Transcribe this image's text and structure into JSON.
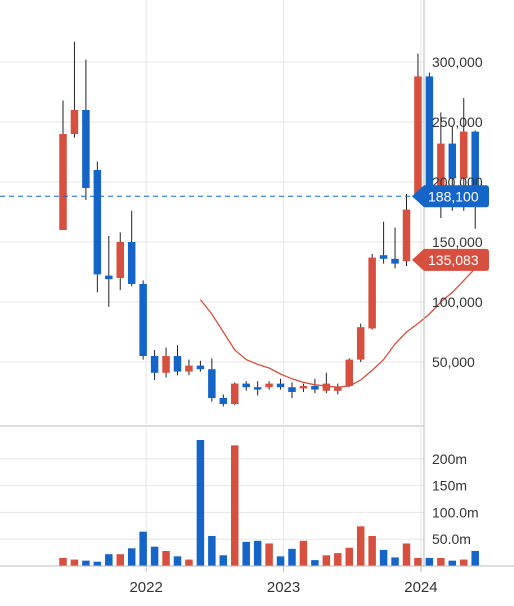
{
  "colors": {
    "up": "#d64f3f",
    "down": "#1565c8",
    "ma": "#d64f3f",
    "grid": "#e6e6e6",
    "axis": "#bbbbbb",
    "price_line": "#1565c8"
  },
  "chart_data": {
    "type": "candlestick",
    "price_axis": {
      "ylim": [
        10000,
        315000
      ],
      "ticks": [
        300000,
        250000,
        200000,
        150000,
        100000,
        50000
      ],
      "tick_labels": [
        "300,000",
        "250,000",
        "200,000",
        "150,000",
        "100,000",
        "50,000"
      ]
    },
    "volume_axis": {
      "ylim": [
        0,
        235
      ],
      "ticks": [
        200,
        150,
        100,
        50
      ],
      "tick_labels": [
        "200m",
        "150m",
        "100.0m",
        "50.0m"
      ]
    },
    "x_ticks": [
      {
        "month": 7,
        "label": "2022"
      },
      {
        "month": 19,
        "label": "2023"
      },
      {
        "month": 31,
        "label": "2024"
      }
    ],
    "month_range": [
      0,
      37
    ],
    "last_price": {
      "value": 188100,
      "label": "188,100"
    },
    "ma_last": {
      "value": 135083,
      "label": "135,083"
    },
    "candles": [
      {
        "m": 0,
        "o": 160000,
        "h": 268000,
        "l": 160000,
        "c": 240000,
        "v": 15
      },
      {
        "m": 1,
        "o": 240000,
        "h": 317000,
        "l": 237000,
        "c": 260000,
        "v": 12
      },
      {
        "m": 2,
        "o": 260000,
        "h": 302000,
        "l": 185000,
        "c": 195000,
        "v": 10
      },
      {
        "m": 3,
        "o": 210000,
        "h": 217000,
        "l": 108000,
        "c": 123000,
        "v": 8
      },
      {
        "m": 4,
        "o": 122000,
        "h": 155000,
        "l": 96000,
        "c": 119000,
        "v": 22
      },
      {
        "m": 5,
        "o": 120000,
        "h": 158000,
        "l": 110000,
        "c": 150000,
        "v": 22
      },
      {
        "m": 6,
        "o": 150000,
        "h": 176000,
        "l": 113000,
        "c": 115000,
        "v": 33
      },
      {
        "m": 7,
        "o": 115000,
        "h": 118000,
        "l": 52000,
        "c": 55000,
        "v": 64
      },
      {
        "m": 8,
        "o": 55000,
        "h": 60000,
        "l": 35000,
        "c": 41000,
        "v": 36
      },
      {
        "m": 9,
        "o": 41000,
        "h": 62000,
        "l": 37000,
        "c": 55000,
        "v": 28
      },
      {
        "m": 10,
        "o": 55000,
        "h": 64000,
        "l": 39000,
        "c": 42000,
        "v": 18
      },
      {
        "m": 11,
        "o": 42000,
        "h": 52000,
        "l": 39000,
        "c": 47000,
        "v": 12
      },
      {
        "m": 12,
        "o": 47000,
        "h": 51000,
        "l": 42000,
        "c": 44000,
        "v": 235
      },
      {
        "m": 13,
        "o": 44000,
        "h": 53000,
        "l": 17000,
        "c": 20000,
        "v": 56
      },
      {
        "m": 14,
        "o": 20000,
        "h": 23000,
        "l": 13000,
        "c": 15000,
        "v": 20
      },
      {
        "m": 15,
        "o": 15000,
        "h": 33000,
        "l": 14000,
        "c": 32000,
        "v": 225
      },
      {
        "m": 16,
        "o": 32000,
        "h": 34000,
        "l": 26000,
        "c": 29000,
        "v": 45
      },
      {
        "m": 17,
        "o": 29000,
        "h": 34000,
        "l": 22000,
        "c": 27000,
        "v": 47
      },
      {
        "m": 18,
        "o": 29000,
        "h": 34000,
        "l": 27000,
        "c": 32000,
        "v": 42
      },
      {
        "m": 19,
        "o": 32000,
        "h": 36000,
        "l": 27000,
        "c": 29000,
        "v": 18
      },
      {
        "m": 20,
        "o": 29000,
        "h": 33000,
        "l": 20000,
        "c": 25000,
        "v": 32
      },
      {
        "m": 21,
        "o": 28000,
        "h": 32000,
        "l": 25000,
        "c": 30000,
        "v": 47
      },
      {
        "m": 22,
        "o": 30000,
        "h": 36000,
        "l": 24000,
        "c": 27000,
        "v": 11
      },
      {
        "m": 23,
        "o": 26000,
        "h": 41000,
        "l": 24000,
        "c": 32000,
        "v": 20
      },
      {
        "m": 24,
        "o": 26000,
        "h": 32000,
        "l": 23000,
        "c": 29000,
        "v": 24
      },
      {
        "m": 25,
        "o": 30000,
        "h": 53000,
        "l": 29000,
        "c": 52000,
        "v": 34
      },
      {
        "m": 26,
        "o": 52000,
        "h": 82000,
        "l": 50000,
        "c": 79000,
        "v": 74
      },
      {
        "m": 27,
        "o": 78000,
        "h": 140000,
        "l": 77000,
        "c": 137000,
        "v": 56
      },
      {
        "m": 28,
        "o": 139000,
        "h": 167000,
        "l": 132000,
        "c": 136000,
        "v": 30
      },
      {
        "m": 29,
        "o": 136000,
        "h": 162000,
        "l": 128000,
        "c": 132000,
        "v": 16
      },
      {
        "m": 30,
        "o": 134000,
        "h": 190000,
        "l": 130000,
        "c": 177000,
        "v": 42
      },
      {
        "m": 31,
        "o": 190000,
        "h": 307000,
        "l": 186000,
        "c": 288000,
        "v": 15
      },
      {
        "m": 32,
        "o": 288000,
        "h": 291000,
        "l": 180000,
        "c": 185000,
        "v": 15
      },
      {
        "m": 33,
        "o": 185000,
        "h": 258000,
        "l": 170000,
        "c": 232000,
        "v": 15
      },
      {
        "m": 34,
        "o": 232000,
        "h": 247000,
        "l": 176000,
        "c": 203000,
        "v": 10
      },
      {
        "m": 35,
        "o": 203000,
        "h": 270000,
        "l": 176000,
        "c": 242000,
        "v": 12
      },
      {
        "m": 36,
        "o": 242000,
        "h": 243000,
        "l": 161000,
        "c": 188100,
        "v": 28
      }
    ],
    "ma": [
      {
        "m": 12,
        "v": 102000
      },
      {
        "m": 13,
        "v": 90000
      },
      {
        "m": 14,
        "v": 75000
      },
      {
        "m": 15,
        "v": 60000
      },
      {
        "m": 16,
        "v": 52000
      },
      {
        "m": 17,
        "v": 48000
      },
      {
        "m": 18,
        "v": 45000
      },
      {
        "m": 19,
        "v": 40000
      },
      {
        "m": 20,
        "v": 36000
      },
      {
        "m": 21,
        "v": 33000
      },
      {
        "m": 22,
        "v": 31000
      },
      {
        "m": 23,
        "v": 30000
      },
      {
        "m": 24,
        "v": 29000
      },
      {
        "m": 25,
        "v": 30000
      },
      {
        "m": 26,
        "v": 35000
      },
      {
        "m": 27,
        "v": 43000
      },
      {
        "m": 28,
        "v": 52000
      },
      {
        "m": 29,
        "v": 65000
      },
      {
        "m": 30,
        "v": 75000
      },
      {
        "m": 31,
        "v": 82000
      },
      {
        "m": 32,
        "v": 90000
      },
      {
        "m": 33,
        "v": 100000
      },
      {
        "m": 34,
        "v": 108000
      },
      {
        "m": 35,
        "v": 118000
      },
      {
        "m": 36,
        "v": 128000
      },
      {
        "m": 37,
        "v": 135083
      }
    ]
  }
}
